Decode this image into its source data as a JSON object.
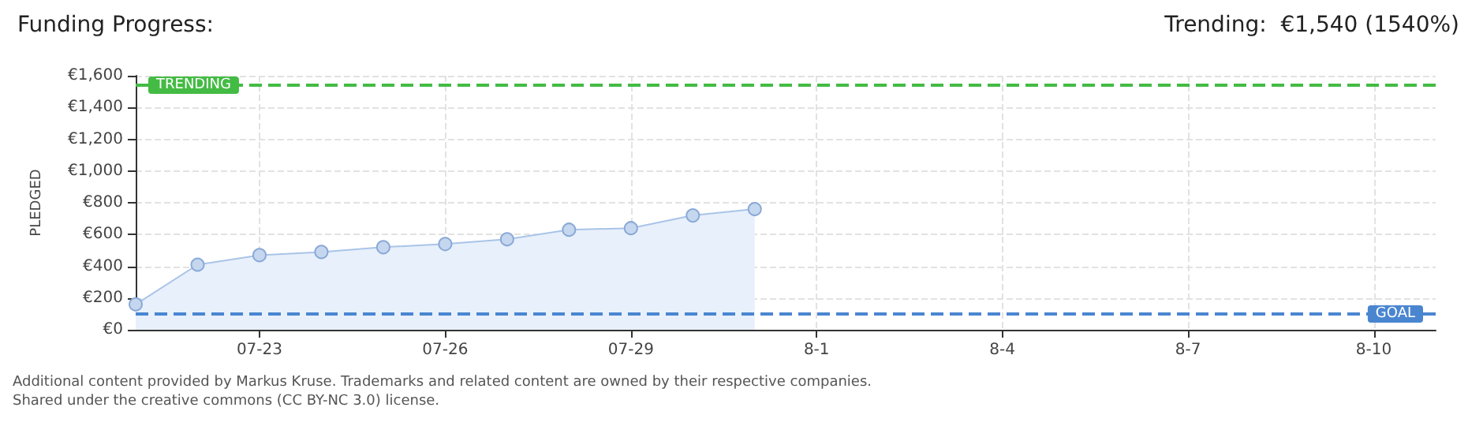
{
  "chart_data": {
    "type": "area",
    "title": "Funding Progress:",
    "subtitle": "Trending:  €1,540 (1540%)",
    "ylabel": "PLEDGED",
    "x": [
      "--07-21",
      "--07-22",
      "--07-23",
      "--07-24",
      "--07-25",
      "--07-26",
      "--07-27",
      "--07-28",
      "--07-29",
      "--07-30",
      "--07-31"
    ],
    "series": [
      {
        "color": "#a9c4e8",
        "values": [
          160,
          410,
          470,
          490,
          520,
          540,
          570,
          630,
          640,
          720,
          760
        ]
      }
    ],
    "xlim": [
      "--07-21",
      "--08-11"
    ],
    "xticks": [
      {
        "value": "--07-23",
        "label": "07-23"
      },
      {
        "value": "--07-26",
        "label": "07-26"
      },
      {
        "value": "--07-29",
        "label": "07-29"
      },
      {
        "value": "--08-01",
        "label": "8-1"
      },
      {
        "value": "--08-04",
        "label": "8-4"
      },
      {
        "value": "--08-07",
        "label": "8-7"
      },
      {
        "value": "--08-10",
        "label": "8-10"
      }
    ],
    "ylim": [
      0,
      1600
    ],
    "yticks": [
      {
        "value": 0,
        "label": "€0"
      },
      {
        "value": 200,
        "label": "€200"
      },
      {
        "value": 400,
        "label": "€400"
      },
      {
        "value": 600,
        "label": "€600"
      },
      {
        "value": 800,
        "label": "€800"
      },
      {
        "value": 1000,
        "label": "€1,000"
      },
      {
        "value": 1200,
        "label": "€1,200"
      },
      {
        "value": 1400,
        "label": "€1,400"
      },
      {
        "value": 1600,
        "label": "€1,600"
      }
    ],
    "ref_lines": [
      {
        "axis": "y",
        "value": 1540,
        "label": "TRENDING",
        "color": "#44bb44",
        "line_style": "dashed"
      },
      {
        "axis": "y",
        "value": 100,
        "label": "GOAL",
        "color": "#4a86d0",
        "line_style": "dashed"
      }
    ],
    "annotations": [
      "Additional content provided by Markus Kruse. Trademarks and related content are owned by their respective companies.",
      "Shared under the creative commons (CC BY-NC 3.0) license."
    ],
    "grid": true,
    "marker": "circle",
    "line_style": "solid"
  }
}
